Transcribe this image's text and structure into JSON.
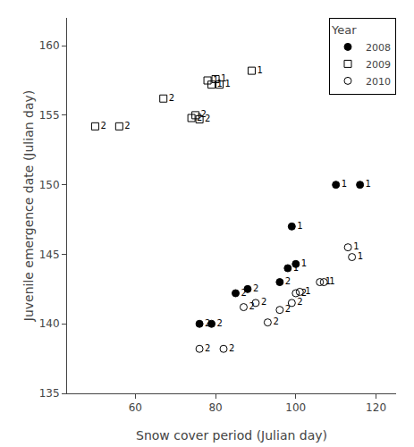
{
  "chart_data": {
    "type": "scatter",
    "xlabel": "Snow cover period (Julian day)",
    "ylabel": "Juvenile emergence date (Julian day)",
    "xlim": [
      43,
      125
    ],
    "ylim": [
      135,
      162
    ],
    "xticks": [
      60,
      80,
      100,
      120
    ],
    "yticks": [
      135,
      140,
      145,
      150,
      155,
      160
    ],
    "grid": false,
    "legend": "upper right",
    "legend_title": "Year",
    "series": [
      {
        "name": "2008",
        "marker": "circle",
        "color": "black",
        "x": [
          76,
          79,
          85,
          88,
          96,
          98,
          100,
          99,
          110,
          116
        ],
        "values": [
          140.0,
          140.0,
          142.2,
          142.5,
          143.0,
          144.0,
          144.3,
          147.0,
          150.0,
          150.0
        ],
        "zones": [
          2,
          2,
          2,
          2,
          2,
          1,
          1,
          1,
          1,
          1
        ]
      },
      {
        "name": "2009",
        "marker": "square-open",
        "color": "black",
        "x": [
          50,
          56,
          67,
          74,
          75,
          76,
          78,
          79,
          80,
          81,
          89
        ],
        "values": [
          154.2,
          154.2,
          156.2,
          154.8,
          155.0,
          154.7,
          157.5,
          157.2,
          157.6,
          157.2,
          158.2
        ],
        "zones": [
          2,
          2,
          2,
          2,
          2,
          2,
          1,
          1,
          1,
          1,
          1
        ]
      },
      {
        "name": "2010",
        "marker": "circle-open",
        "color": "black",
        "x": [
          76,
          82,
          87,
          90,
          93,
          96,
          99,
          100,
          101,
          106,
          107,
          113,
          114
        ],
        "values": [
          138.2,
          138.2,
          141.2,
          141.5,
          140.1,
          141.0,
          141.5,
          142.2,
          142.3,
          143.0,
          143.0,
          145.5,
          144.8
        ],
        "zones": [
          2,
          2,
          2,
          2,
          2,
          2,
          2,
          2,
          1,
          1,
          1,
          1,
          1
        ]
      }
    ]
  }
}
